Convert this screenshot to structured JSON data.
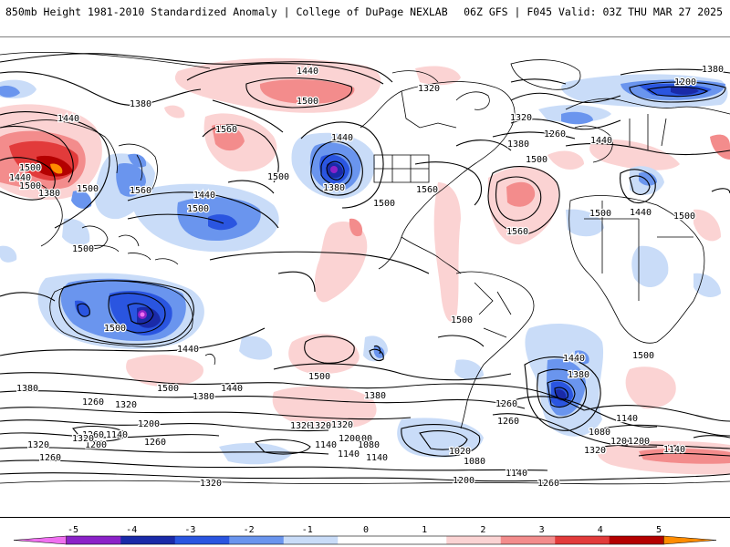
{
  "header": {
    "title_left": "850mb Height 1981-2010 Standardized Anomaly | College of DuPage NEXLAB",
    "title_right": "06Z GFS | F045 Valid: 03Z THU MAR 27 2025"
  },
  "colors": {
    "levels": [
      "#f070f0",
      "#8b22c8",
      "#1a2aa8",
      "#2a55e0",
      "#6a95ee",
      "#c9dcf8",
      "#ffffff",
      "#ffffff",
      "#fbd3d3",
      "#f38c8c",
      "#e23b3b",
      "#b40000",
      "#ff8c00"
    ],
    "contour": "#000000",
    "border": "#000000"
  },
  "colorbar": {
    "ticks": [
      "-5",
      "-4",
      "-3",
      "-2",
      "-1",
      "0",
      "1",
      "2",
      "3",
      "4",
      "5"
    ]
  },
  "contour_labels": [
    {
      "text": "1440"
    },
    {
      "text": "1500"
    },
    {
      "text": "1380"
    },
    {
      "text": "1320"
    },
    {
      "text": "1380"
    },
    {
      "text": "1200"
    },
    {
      "text": "1440"
    },
    {
      "text": "1320"
    },
    {
      "text": "1260"
    },
    {
      "text": "1320"
    },
    {
      "text": "1380"
    },
    {
      "text": "1440"
    },
    {
      "text": "1500"
    },
    {
      "text": "1500"
    },
    {
      "text": "1440"
    },
    {
      "text": "1380"
    },
    {
      "text": "1500"
    },
    {
      "text": "1560"
    },
    {
      "text": "1500"
    },
    {
      "text": "1560"
    },
    {
      "text": "1440"
    },
    {
      "text": "1500"
    },
    {
      "text": "1500"
    },
    {
      "text": "1440"
    },
    {
      "text": "1380"
    },
    {
      "text": "1500"
    },
    {
      "text": "1560"
    },
    {
      "text": "1500"
    },
    {
      "text": "1500"
    },
    {
      "text": "1500"
    },
    {
      "text": "1440"
    },
    {
      "text": "1500"
    },
    {
      "text": "1500"
    },
    {
      "text": "1380"
    },
    {
      "text": "1500"
    },
    {
      "text": "1560"
    },
    {
      "text": "1500"
    },
    {
      "text": "1500"
    },
    {
      "text": "1440"
    },
    {
      "text": "1380"
    },
    {
      "text": "1440"
    },
    {
      "text": "1500"
    },
    {
      "text": "1440"
    },
    {
      "text": "1380"
    },
    {
      "text": "1320"
    },
    {
      "text": "1260"
    },
    {
      "text": "1200"
    },
    {
      "text": "1260"
    },
    {
      "text": "1320"
    },
    {
      "text": "1140"
    },
    {
      "text": "1200"
    },
    {
      "text": "1260"
    },
    {
      "text": "1260"
    },
    {
      "text": "1320"
    },
    {
      "text": "1200"
    },
    {
      "text": "1080"
    },
    {
      "text": "1140"
    },
    {
      "text": "1080"
    },
    {
      "text": "1020"
    },
    {
      "text": "1080"
    },
    {
      "text": "1140"
    },
    {
      "text": "1200"
    },
    {
      "text": "1320"
    },
    {
      "text": "1140"
    },
    {
      "text": "1200"
    },
    {
      "text": "1140"
    },
    {
      "text": "1200"
    },
    {
      "text": "1260"
    },
    {
      "text": "1320"
    },
    {
      "text": "1320"
    },
    {
      "text": "1380"
    },
    {
      "text": "1260"
    },
    {
      "text": "1200"
    },
    {
      "text": "1140"
    },
    {
      "text": "1140"
    },
    {
      "text": "1320"
    },
    {
      "text": "1260"
    }
  ]
}
